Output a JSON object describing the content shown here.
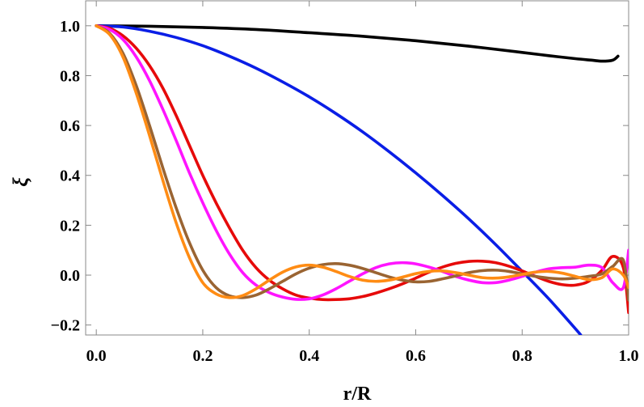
{
  "chart_data": {
    "type": "line",
    "title": "",
    "xlabel": "r/R",
    "ylabel": "ξ",
    "xlim": [
      -0.02,
      1.0
    ],
    "ylim": [
      -0.24,
      1.1
    ],
    "grid": false,
    "legend": "none",
    "xticks": [
      {
        "value": 0.0,
        "label": "0.0"
      },
      {
        "value": 0.2,
        "label": "0.2"
      },
      {
        "value": 0.4,
        "label": "0.4"
      },
      {
        "value": 0.6,
        "label": "0.6"
      },
      {
        "value": 0.8,
        "label": "0.8"
      },
      {
        "value": 1.0,
        "label": "1.0"
      }
    ],
    "yticks": [
      {
        "value": 1.0,
        "label": "1.0"
      },
      {
        "value": 0.8,
        "label": "0.8"
      },
      {
        "value": 0.6,
        "label": "0.6"
      },
      {
        "value": 0.4,
        "label": "0.4"
      },
      {
        "value": 0.2,
        "label": "0.2"
      },
      {
        "value": 0.0,
        "label": "0.0"
      },
      {
        "value": -0.2,
        "label": "−0.2"
      }
    ],
    "series": [
      {
        "name": "black",
        "color": "#000000",
        "x": [
          0,
          0.1,
          0.2,
          0.3,
          0.4,
          0.5,
          0.6,
          0.7,
          0.8,
          0.85,
          0.9,
          0.93,
          0.95,
          0.97,
          0.98
        ],
        "y": [
          1.0,
          0.998,
          0.993,
          0.985,
          0.972,
          0.958,
          0.94,
          0.918,
          0.893,
          0.88,
          0.868,
          0.862,
          0.858,
          0.862,
          0.878
        ]
      },
      {
        "name": "blue",
        "color": "#0a1ee6",
        "x": [
          0,
          0.05,
          0.1,
          0.15,
          0.2,
          0.25,
          0.3,
          0.35,
          0.4,
          0.45,
          0.5,
          0.55,
          0.6,
          0.65,
          0.7,
          0.75,
          0.8,
          0.85,
          0.9,
          0.91
        ],
        "y": [
          1.0,
          0.995,
          0.978,
          0.953,
          0.92,
          0.878,
          0.83,
          0.775,
          0.715,
          0.648,
          0.575,
          0.495,
          0.41,
          0.32,
          0.225,
          0.123,
          0.015,
          -0.095,
          -0.215,
          -0.24
        ]
      },
      {
        "name": "red",
        "color": "#e60a0a",
        "x": [
          0,
          0.025,
          0.05,
          0.075,
          0.1,
          0.125,
          0.15,
          0.175,
          0.2,
          0.225,
          0.25,
          0.275,
          0.3,
          0.325,
          0.35,
          0.375,
          0.4,
          0.425,
          0.45,
          0.475,
          0.5,
          0.525,
          0.55,
          0.575,
          0.6,
          0.625,
          0.65,
          0.675,
          0.7,
          0.725,
          0.75,
          0.775,
          0.8,
          0.825,
          0.85,
          0.875,
          0.9,
          0.925,
          0.95,
          0.97,
          0.99,
          1.0
        ],
        "y": [
          1.0,
          0.99,
          0.96,
          0.91,
          0.84,
          0.75,
          0.64,
          0.52,
          0.4,
          0.29,
          0.19,
          0.1,
          0.03,
          -0.02,
          -0.055,
          -0.08,
          -0.092,
          -0.098,
          -0.098,
          -0.095,
          -0.086,
          -0.072,
          -0.055,
          -0.035,
          -0.012,
          0.012,
          0.032,
          0.047,
          0.055,
          0.056,
          0.05,
          0.036,
          0.017,
          -0.005,
          -0.025,
          -0.038,
          -0.04,
          -0.025,
          0.02,
          0.075,
          0.03,
          -0.15
        ]
      },
      {
        "name": "magenta",
        "color": "#ff14ff",
        "x": [
          0,
          0.025,
          0.05,
          0.075,
          0.1,
          0.125,
          0.15,
          0.175,
          0.2,
          0.225,
          0.25,
          0.275,
          0.3,
          0.325,
          0.35,
          0.375,
          0.4,
          0.425,
          0.45,
          0.475,
          0.5,
          0.525,
          0.55,
          0.575,
          0.6,
          0.625,
          0.65,
          0.675,
          0.7,
          0.725,
          0.75,
          0.775,
          0.8,
          0.825,
          0.85,
          0.875,
          0.9,
          0.925,
          0.95,
          0.97,
          0.99,
          1.0
        ],
        "y": [
          1.0,
          0.985,
          0.945,
          0.875,
          0.78,
          0.665,
          0.54,
          0.41,
          0.29,
          0.18,
          0.085,
          0.01,
          -0.04,
          -0.07,
          -0.088,
          -0.097,
          -0.095,
          -0.08,
          -0.055,
          -0.025,
          0.005,
          0.03,
          0.045,
          0.05,
          0.045,
          0.032,
          0.015,
          -0.005,
          -0.02,
          -0.03,
          -0.03,
          -0.02,
          -0.005,
          0.012,
          0.025,
          0.03,
          0.032,
          0.04,
          0.03,
          -0.03,
          -0.05,
          0.1
        ]
      },
      {
        "name": "brown",
        "color": "#9a6432",
        "x": [
          0,
          0.025,
          0.05,
          0.075,
          0.1,
          0.125,
          0.15,
          0.175,
          0.2,
          0.225,
          0.25,
          0.275,
          0.3,
          0.325,
          0.35,
          0.375,
          0.4,
          0.425,
          0.45,
          0.475,
          0.5,
          0.525,
          0.55,
          0.575,
          0.6,
          0.625,
          0.65,
          0.675,
          0.7,
          0.725,
          0.75,
          0.775,
          0.8,
          0.825,
          0.85,
          0.875,
          0.9,
          0.925,
          0.95,
          0.97,
          0.99,
          1.0
        ],
        "y": [
          1.0,
          0.97,
          0.89,
          0.76,
          0.6,
          0.43,
          0.27,
          0.13,
          0.02,
          -0.05,
          -0.083,
          -0.09,
          -0.08,
          -0.055,
          -0.025,
          0.005,
          0.028,
          0.042,
          0.046,
          0.04,
          0.027,
          0.01,
          -0.007,
          -0.02,
          -0.027,
          -0.025,
          -0.015,
          -0.003,
          0.01,
          0.018,
          0.02,
          0.015,
          0.005,
          -0.005,
          -0.012,
          -0.015,
          -0.012,
          -0.005,
          0.005,
          0.035,
          0.06,
          -0.1
        ]
      },
      {
        "name": "orange",
        "color": "#ff8c14",
        "x": [
          0,
          0.025,
          0.05,
          0.075,
          0.1,
          0.125,
          0.15,
          0.175,
          0.2,
          0.225,
          0.25,
          0.275,
          0.3,
          0.325,
          0.35,
          0.375,
          0.4,
          0.425,
          0.45,
          0.475,
          0.5,
          0.525,
          0.55,
          0.575,
          0.6,
          0.625,
          0.65,
          0.675,
          0.7,
          0.725,
          0.75,
          0.775,
          0.8,
          0.825,
          0.85,
          0.875,
          0.9,
          0.925,
          0.95,
          0.97,
          0.99,
          1.0
        ],
        "y": [
          1.0,
          0.965,
          0.875,
          0.73,
          0.56,
          0.38,
          0.21,
          0.07,
          -0.03,
          -0.075,
          -0.09,
          -0.082,
          -0.055,
          -0.02,
          0.012,
          0.033,
          0.04,
          0.032,
          0.015,
          -0.005,
          -0.02,
          -0.025,
          -0.02,
          -0.008,
          0.006,
          0.015,
          0.017,
          0.01,
          0.0,
          -0.01,
          -0.012,
          -0.007,
          0.003,
          0.012,
          0.015,
          0.008,
          -0.005,
          -0.018,
          -0.01,
          0.025,
          0.0,
          -0.05
        ]
      }
    ]
  }
}
